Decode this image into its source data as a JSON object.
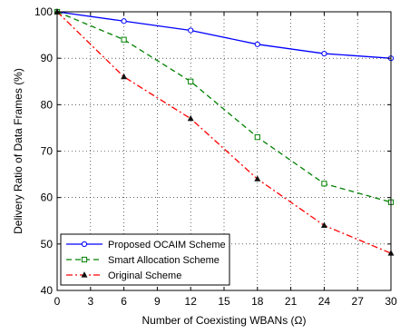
{
  "chart_data": {
    "type": "line",
    "title": "",
    "xlabel": "Number of Coexisting WBANs (Ω)",
    "ylabel": "Delivery Ratio of Data Frames (%)",
    "xlim": [
      0,
      30
    ],
    "ylim": [
      40,
      100
    ],
    "xticks": [
      0,
      3,
      6,
      9,
      12,
      15,
      18,
      21,
      24,
      27,
      30
    ],
    "yticks": [
      40,
      50,
      60,
      70,
      80,
      90,
      100
    ],
    "grid": true,
    "legend_position": "bottom-left",
    "series": [
      {
        "name": "Proposed OCAIM Scheme",
        "color": "#0000ff",
        "line_style": "solid",
        "marker": "circle",
        "x": [
          0,
          6,
          12,
          18,
          24,
          30
        ],
        "y": [
          100,
          98,
          96,
          93,
          91,
          90
        ]
      },
      {
        "name": "Smart Allocation Scheme",
        "color": "#008000",
        "line_style": "dashed",
        "marker": "square",
        "x": [
          0,
          6,
          12,
          18,
          24,
          30
        ],
        "y": [
          100,
          94,
          85,
          73,
          63,
          59
        ]
      },
      {
        "name": "Original Scheme",
        "color": "#ff0000",
        "line_style": "dashdot",
        "marker": "triangle",
        "x": [
          0,
          6,
          12,
          18,
          24,
          30
        ],
        "y": [
          100,
          86,
          77,
          64,
          54,
          48
        ]
      }
    ]
  }
}
